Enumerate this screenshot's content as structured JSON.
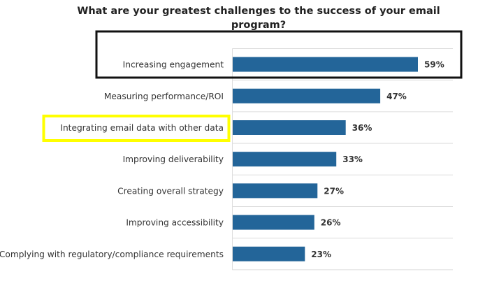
{
  "chart_data": {
    "type": "bar",
    "orientation": "horizontal",
    "title_lines": [
      "What are your greatest challenges to the success of your email",
      "program?"
    ],
    "categories": [
      "Increasing engagement",
      "Measuring performance/ROI",
      "Integrating email data with other data",
      "Improving deliverability",
      "Creating overall strategy",
      "Improving accessibility",
      "Complying with regulatory/compliance requirements"
    ],
    "values": [
      59,
      47,
      36,
      33,
      27,
      26,
      23
    ],
    "value_labels": [
      "59%",
      "47%",
      "36%",
      "33%",
      "27%",
      "26%",
      "23%"
    ],
    "unit": "%",
    "xlim": [
      0,
      70
    ],
    "xlabel": "",
    "ylabel": "",
    "grid": true,
    "legend": "none",
    "highlights": [
      {
        "category_index": 0,
        "style": "black-box"
      },
      {
        "category_index": 2,
        "style": "yellow-box"
      }
    ],
    "colors": {
      "bar": "#236599",
      "grid": "#dddddd",
      "black_box": "#111111",
      "yellow_box": "#ffff00"
    }
  }
}
